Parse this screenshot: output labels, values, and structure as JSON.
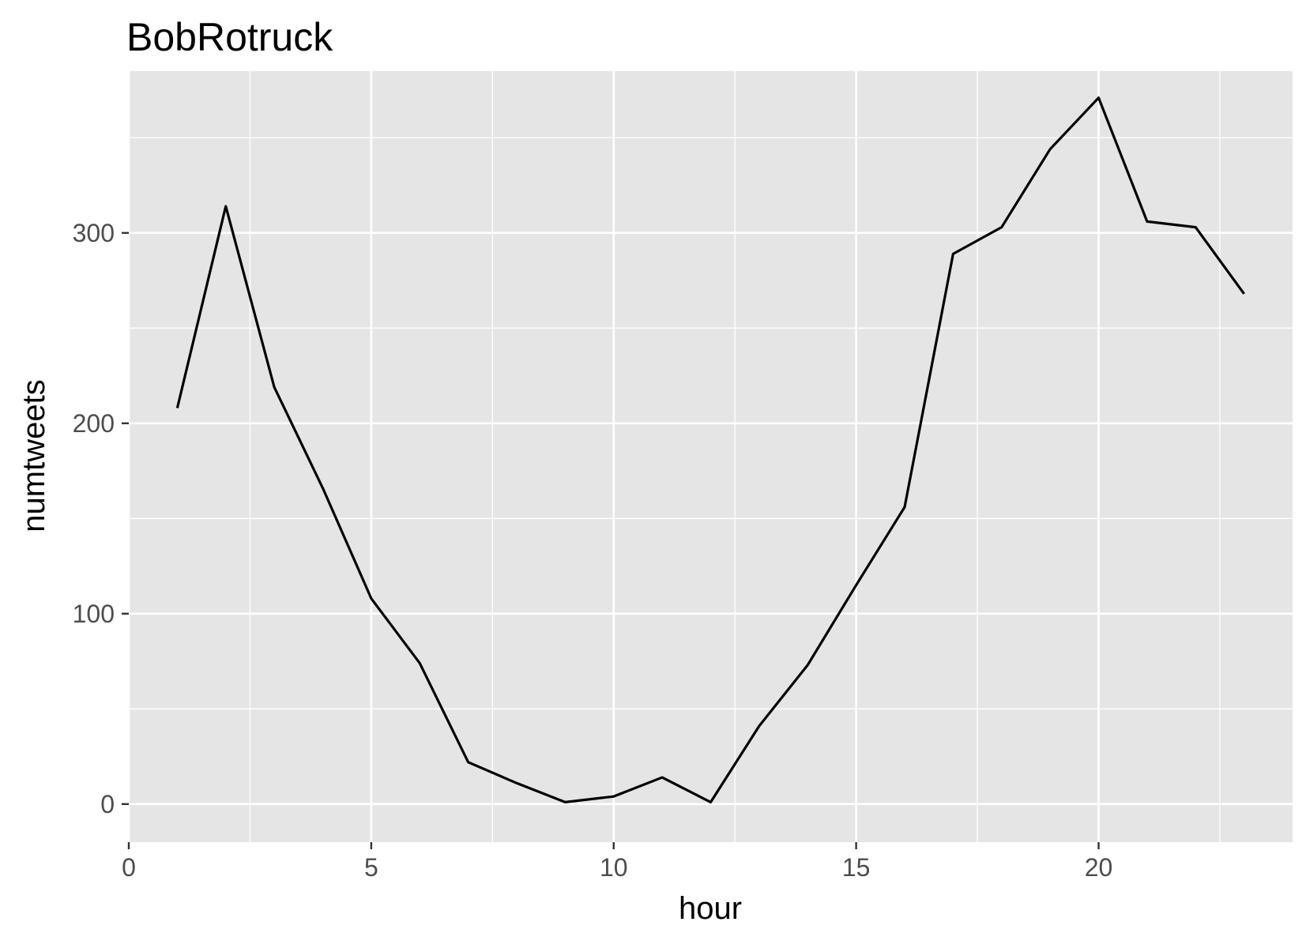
{
  "chart_data": {
    "type": "line",
    "title": "BobRotruck",
    "xlabel": "hour",
    "ylabel": "numtweets",
    "xlim": [
      0,
      24
    ],
    "ylim": [
      -20,
      385
    ],
    "x_ticks": [
      0,
      5,
      10,
      15,
      20
    ],
    "x_tick_labels": [
      "0",
      "5",
      "10",
      "15",
      "20"
    ],
    "y_ticks": [
      0,
      100,
      200,
      300
    ],
    "y_tick_labels": [
      "0",
      "100",
      "200",
      "300"
    ],
    "grid": true,
    "legend": "none",
    "colors": {
      "panel_background": "#e5e5e5",
      "grid": "#ffffff",
      "line": "#000000",
      "tick_text": "#4d4d4d",
      "axis_ticks": "#333333"
    },
    "series": [
      {
        "x": [
          1,
          2,
          3,
          4,
          5,
          6,
          7,
          8,
          9,
          10,
          11,
          12,
          13,
          14,
          15,
          16,
          17,
          18,
          19,
          20,
          21,
          22,
          23
        ],
        "values": [
          208,
          314,
          219,
          166,
          108,
          74,
          22,
          11,
          1,
          4,
          14,
          1,
          41,
          73,
          115,
          156,
          289,
          303,
          344,
          371,
          306,
          303,
          268
        ]
      }
    ]
  }
}
